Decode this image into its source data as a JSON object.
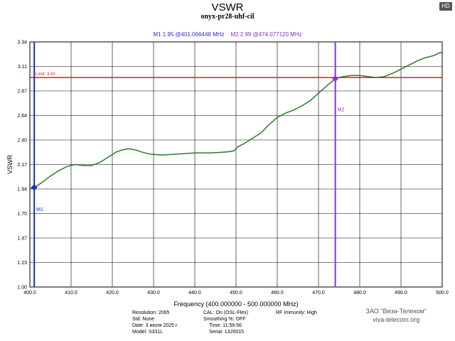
{
  "title": "VSWR",
  "subtitle": "onyx-pr28-uhf-cil",
  "badge": "HD",
  "markers_readout": {
    "m1": "M1  1.95 @401.066448 MHz",
    "m2": "M2  2.99 @474.077120 MHz"
  },
  "chart_data": {
    "type": "line",
    "title": "VSWR",
    "xlabel": "Frequency (400.000000 - 500.000000 MHz)",
    "ylabel": "VSWR",
    "xlim": [
      400,
      500
    ],
    "ylim": [
      1.0,
      3.34
    ],
    "x_ticks": [
      "400.0",
      "410.0",
      "420.0",
      "430.0",
      "440.0",
      "450.0",
      "460.0",
      "470.0",
      "480.0",
      "490.0",
      "500.0"
    ],
    "y_ticks": [
      "3.34",
      "3.11",
      "2.87",
      "2.64",
      "2.40",
      "2.17",
      "1.94",
      "1.70",
      "1.47",
      "1.23",
      "1.00"
    ],
    "grid": true,
    "series": [
      {
        "color": "#2a7a2a",
        "x": [
          400.0,
          401.1,
          403,
          405,
          407,
          409,
          411,
          413,
          415,
          417,
          419,
          421,
          422.5,
          424,
          425.5,
          427,
          429,
          432,
          436,
          440,
          444,
          448,
          449.5,
          450.5,
          452,
          454,
          456,
          458,
          460,
          462,
          464,
          466,
          468,
          470,
          472,
          474.1,
          476,
          478,
          480,
          482,
          484,
          486,
          488,
          490,
          492,
          494,
          496,
          498,
          499.5,
          500
        ],
        "y": [
          1.94,
          1.95,
          2.0,
          2.06,
          2.11,
          2.15,
          2.17,
          2.16,
          2.16,
          2.19,
          2.24,
          2.29,
          2.31,
          2.32,
          2.31,
          2.29,
          2.27,
          2.26,
          2.27,
          2.28,
          2.28,
          2.29,
          2.3,
          2.34,
          2.37,
          2.42,
          2.47,
          2.55,
          2.62,
          2.66,
          2.69,
          2.73,
          2.78,
          2.85,
          2.92,
          2.99,
          3.01,
          3.02,
          3.02,
          3.01,
          3.0,
          3.01,
          3.04,
          3.08,
          3.12,
          3.16,
          3.19,
          3.21,
          3.24,
          3.23
        ]
      }
    ],
    "limit": {
      "label": "Limit: 3.00",
      "value": 3.0,
      "color": "#d02020"
    },
    "markers": [
      {
        "label": "M1",
        "x": 401.066448,
        "y": 1.95,
        "color": "#1030d0"
      },
      {
        "label": "M2",
        "x": 474.07712,
        "y": 2.99,
        "color": "#9030d0"
      }
    ]
  },
  "info": {
    "col1": [
      "Resolution: 2065",
      "Std: None",
      "Date: 3 июля 2025 г.",
      "Model: S331L"
    ],
    "col2": [
      "CAL: On (OSL-Flex)",
      "Smoothing %: OFF",
      "Time: 11:58:56",
      "Serial: 1320015"
    ],
    "col3": [
      "RF Immunity: High"
    ]
  },
  "company": {
    "name": "ЗАО \"Виза-Телеком\"",
    "url": "viva-telecom.org"
  }
}
